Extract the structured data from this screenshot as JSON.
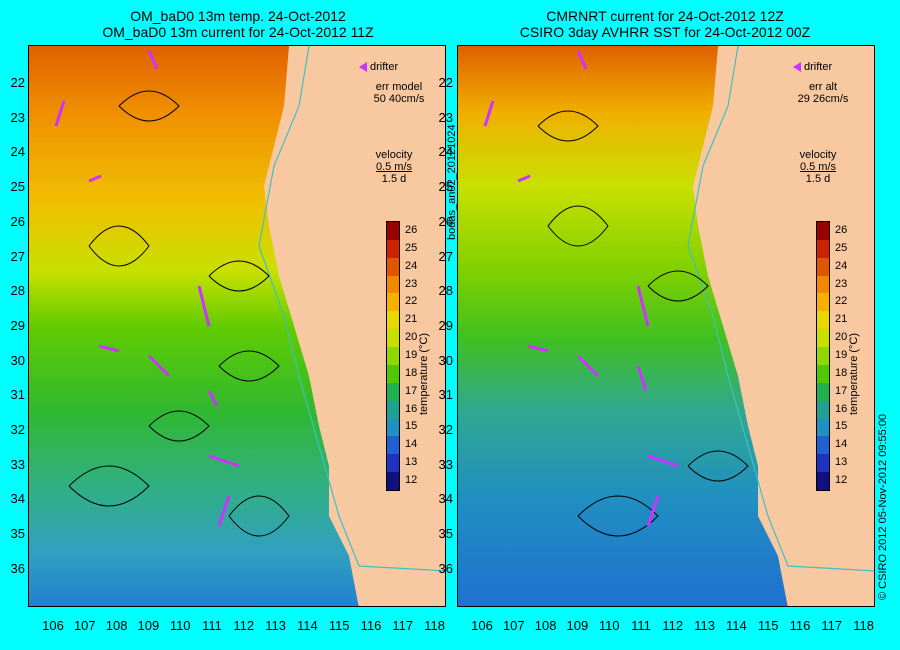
{
  "titles": {
    "left_line1": "OM_baD0 13m temp. 24-Oct-2012",
    "left_line2": "OM_baD0 13m current for 24-Oct-2012 11Z",
    "right_line1": "CMRNRT current for 24-Oct-2012 12Z",
    "right_line2": "CSIRO 3day AVHRR SST for 24-Oct-2012 00Z"
  },
  "left_panel": {
    "drifter_label": "drifter",
    "err_label": "err model",
    "err_value": "50 40cm/s",
    "velocity_label": "velocity",
    "velocity_scale": "0.5 m/s",
    "velocity_time": "1.5 d"
  },
  "right_panel": {
    "drifter_label": "drifter",
    "err_label": "err alt",
    "err_value": "29 26cm/s",
    "velocity_label": "velocity",
    "velocity_scale": "0.5 m/s",
    "velocity_time": "1.5 d"
  },
  "axes": {
    "y_ticks": [
      "22",
      "23",
      "24",
      "25",
      "26",
      "27",
      "28",
      "29",
      "30",
      "31",
      "32",
      "33",
      "34",
      "35",
      "36"
    ],
    "x_ticks": [
      "106",
      "107",
      "108",
      "109",
      "110",
      "111",
      "112",
      "113",
      "114",
      "115",
      "116",
      "117",
      "118"
    ]
  },
  "colorbar": {
    "label": "temperature (°C)",
    "ticks": [
      "26",
      "25",
      "24",
      "23",
      "22",
      "21",
      "20",
      "19",
      "18",
      "17",
      "16",
      "15",
      "14",
      "13",
      "12"
    ],
    "colors": [
      "#990000",
      "#cc2200",
      "#e05500",
      "#f08800",
      "#f5b000",
      "#e8d800",
      "#c8e000",
      "#90d800",
      "#50c800",
      "#20b050",
      "#20a090",
      "#2090c0",
      "#2060d0",
      "#2030c0",
      "#101080"
    ]
  },
  "side_labels": {
    "middle": "bodas_an02_20121024",
    "right": "© CSIRO 2012   05-Nov-2012 09:55:00"
  },
  "colors": {
    "background": "#00ffff",
    "land": "#f8c8a0",
    "drifter": "#cc33ff",
    "coastline": "#40c0c0"
  }
}
